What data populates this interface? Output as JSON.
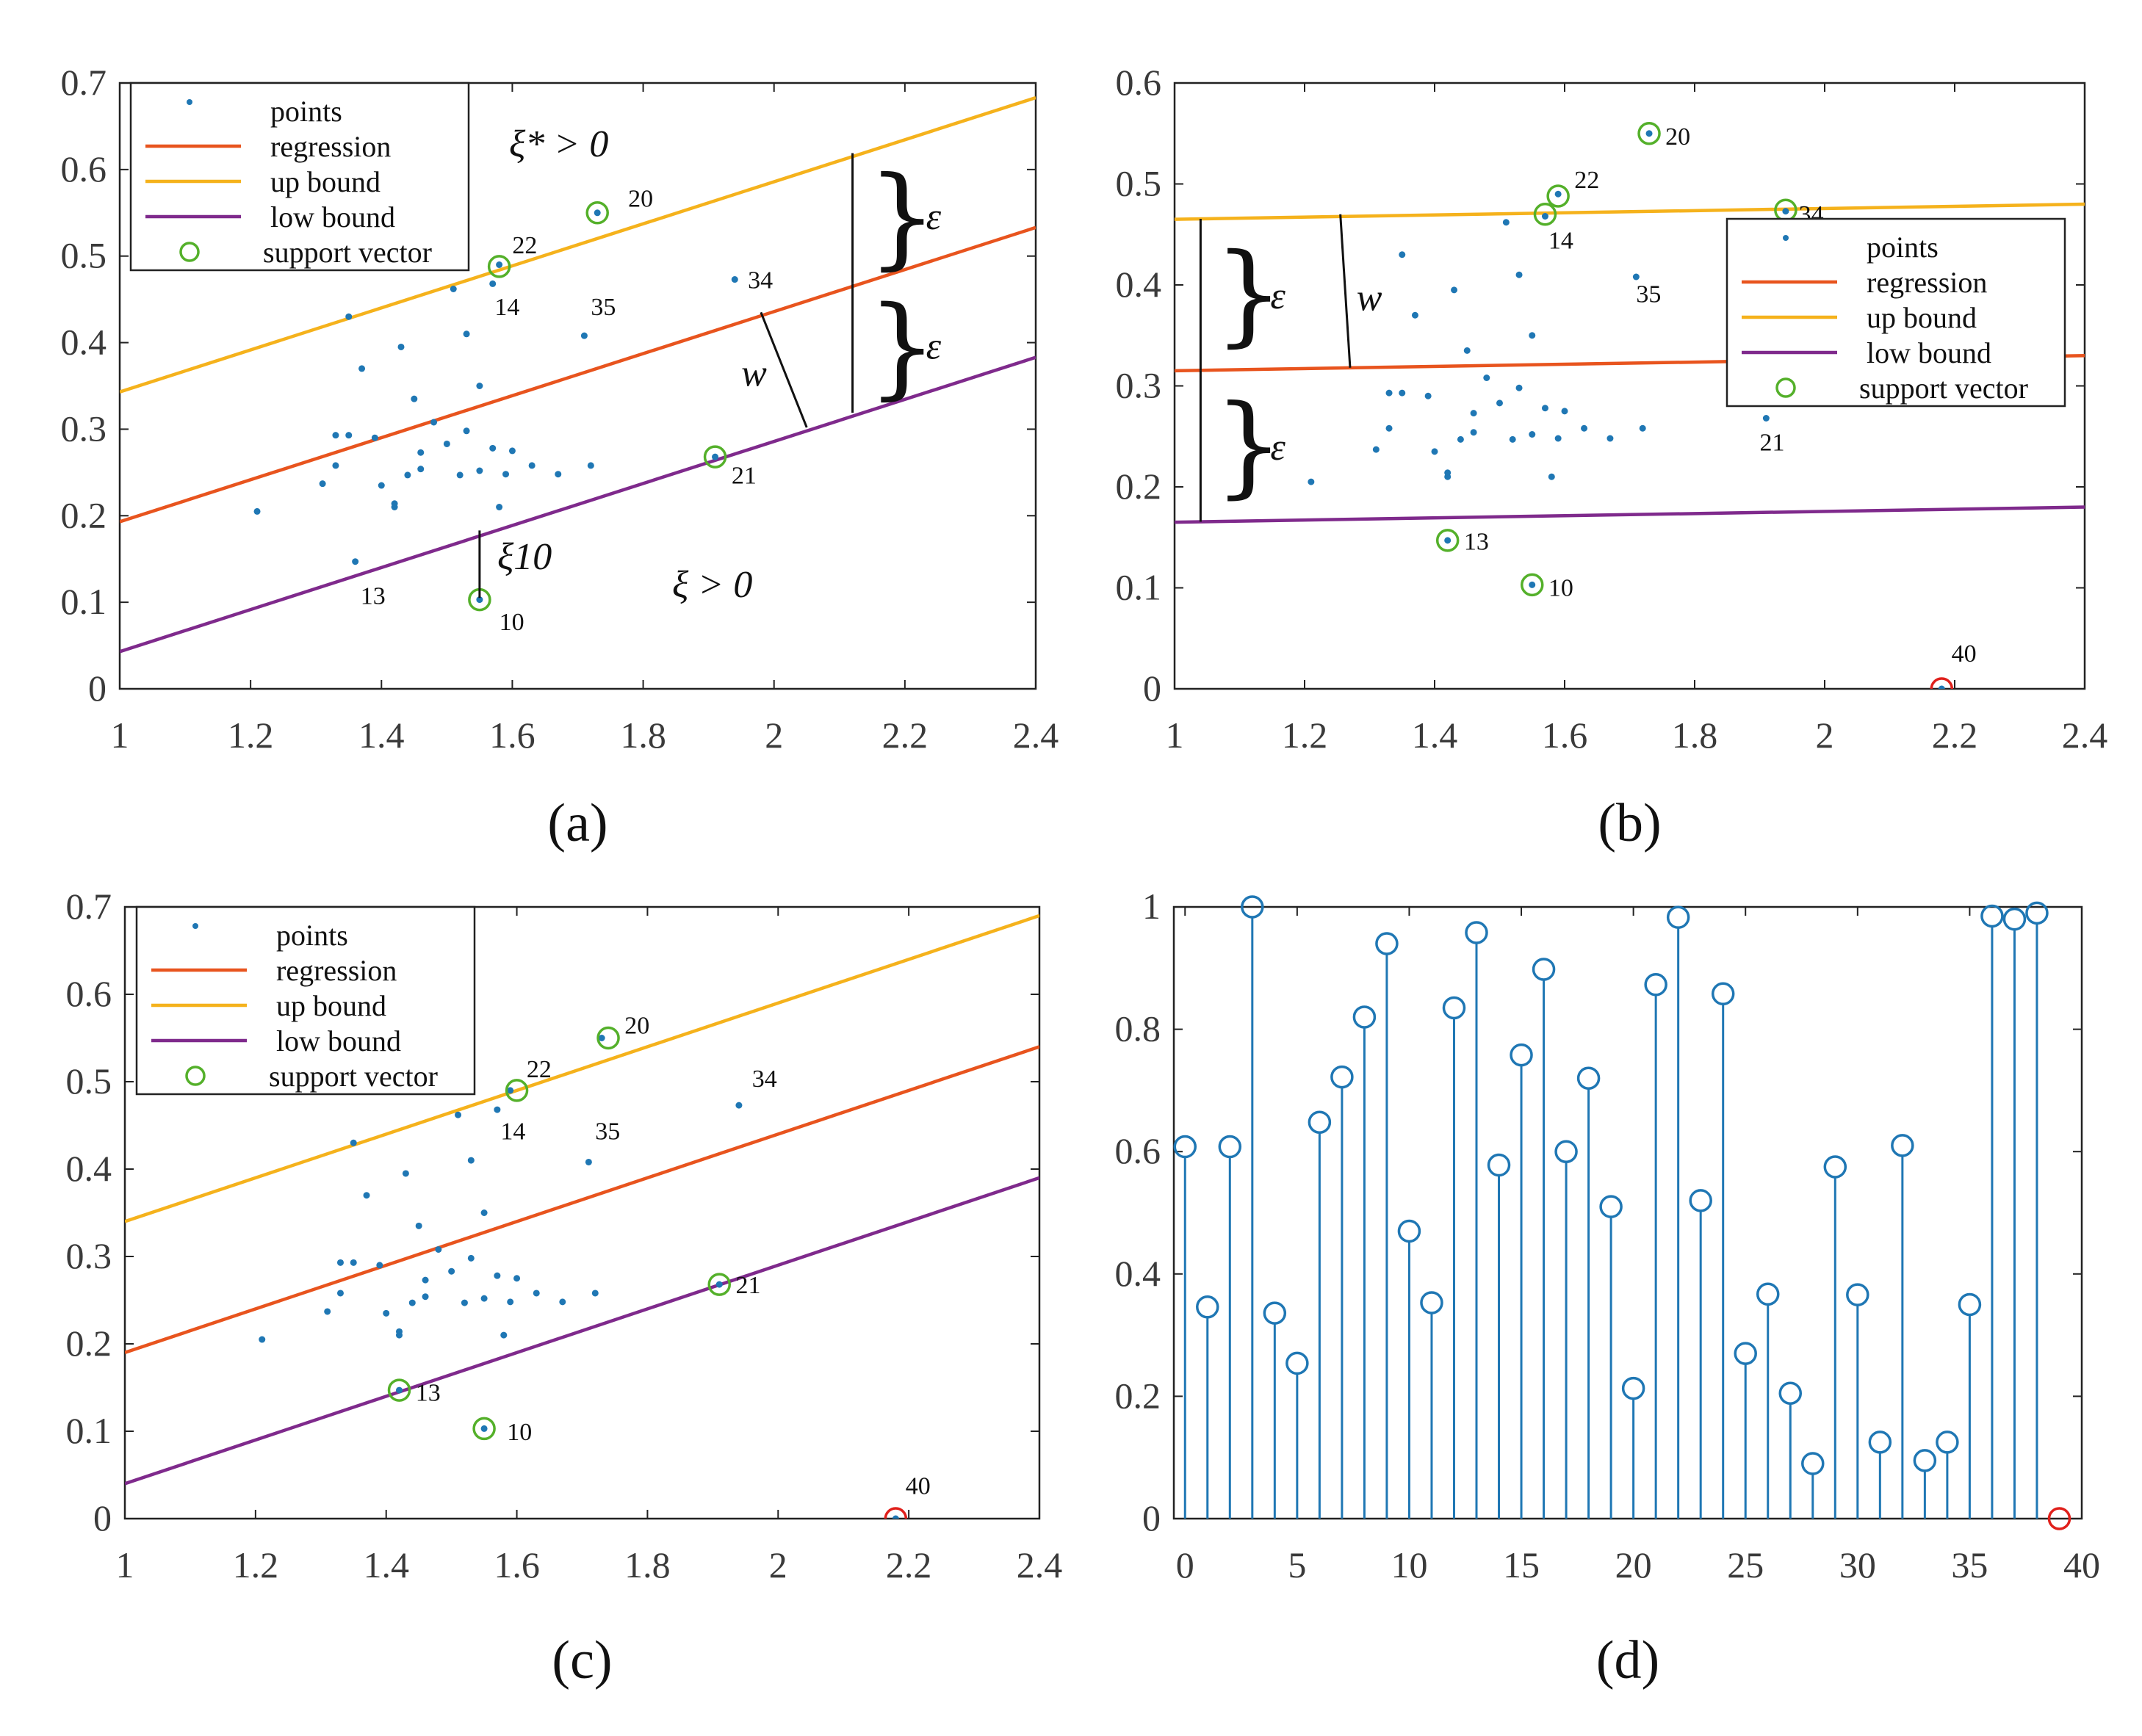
{
  "colors": {
    "points": "#1f77b4",
    "regression": "#e8541e",
    "up_bound": "#f5b21c",
    "low_bound": "#7f2a8c",
    "support_vector": "#54b02a",
    "outlier": "#e0201b",
    "stem": "#1f77b4"
  },
  "legend": {
    "points": "points",
    "regression": "regression",
    "up_bound": "up bound",
    "low_bound": "low bound",
    "support_vector": "support vector"
  },
  "chart_data": [
    {
      "id": "a",
      "type": "scatter",
      "caption": "(a)",
      "xlim": [
        1,
        2.4
      ],
      "ylim": [
        0,
        0.7
      ],
      "xticks": [
        1,
        1.2,
        1.4,
        1.6,
        1.8,
        2,
        2.2,
        2.4
      ],
      "xtick_labels": [
        "1",
        "1.2",
        "1.4",
        "1.6",
        "1.8",
        "2",
        "2.2",
        "2.4"
      ],
      "yticks": [
        0,
        0.1,
        0.2,
        0.3,
        0.4,
        0.5,
        0.6,
        0.7
      ],
      "ytick_labels": [
        "0",
        "0.1",
        "0.2",
        "0.3",
        "0.4",
        "0.5",
        "0.6",
        "0.7"
      ],
      "lines": {
        "regression": [
          [
            1,
            0.193
          ],
          [
            2.4,
            0.533
          ]
        ],
        "up_bound": [
          [
            1,
            0.343
          ],
          [
            2.4,
            0.683
          ]
        ],
        "low_bound": [
          [
            1,
            0.043
          ],
          [
            2.4,
            0.383
          ]
        ]
      },
      "points": [
        [
          1.21,
          0.205
        ],
        [
          1.31,
          0.237
        ],
        [
          1.33,
          0.293
        ],
        [
          1.33,
          0.258
        ],
        [
          1.35,
          0.293
        ],
        [
          1.35,
          0.43
        ],
        [
          1.37,
          0.37
        ],
        [
          1.39,
          0.29
        ],
        [
          1.4,
          0.235
        ],
        [
          1.42,
          0.21
        ],
        [
          1.42,
          0.214
        ],
        [
          1.43,
          0.395
        ],
        [
          1.44,
          0.247
        ],
        [
          1.45,
          0.335
        ],
        [
          1.46,
          0.254
        ],
        [
          1.46,
          0.273
        ],
        [
          1.48,
          0.308
        ],
        [
          1.5,
          0.283
        ],
        [
          1.51,
          0.462
        ],
        [
          1.52,
          0.247
        ],
        [
          1.53,
          0.298
        ],
        [
          1.53,
          0.41
        ],
        [
          1.55,
          0.35
        ],
        [
          1.55,
          0.252
        ],
        [
          1.57,
          0.278
        ],
        [
          1.57,
          0.468
        ],
        [
          1.58,
          0.21
        ],
        [
          1.59,
          0.248
        ],
        [
          1.6,
          0.275
        ],
        [
          1.63,
          0.258
        ],
        [
          1.67,
          0.248
        ],
        [
          1.71,
          0.408
        ],
        [
          1.72,
          0.258
        ],
        [
          1.94,
          0.473
        ],
        [
          1.36,
          0.147
        ],
        [
          1.55,
          0.103
        ],
        [
          1.58,
          0.49
        ],
        [
          1.73,
          0.55
        ],
        [
          1.91,
          0.268
        ]
      ],
      "support_vectors": [
        [
          1.55,
          0.103
        ],
        [
          1.58,
          0.488
        ],
        [
          1.73,
          0.55
        ],
        [
          1.91,
          0.268
        ]
      ],
      "outliers": [],
      "point_labels": [
        {
          "text": "20",
          "x": 1.777,
          "y": 0.557
        },
        {
          "text": "22",
          "x": 1.6,
          "y": 0.503
        },
        {
          "text": "14",
          "x": 1.573,
          "y": 0.432
        },
        {
          "text": "35",
          "x": 1.72,
          "y": 0.432
        },
        {
          "text": "34",
          "x": 1.96,
          "y": 0.463
        },
        {
          "text": "21",
          "x": 1.935,
          "y": 0.237
        },
        {
          "text": "13",
          "x": 1.368,
          "y": 0.098
        },
        {
          "text": "10",
          "x": 1.58,
          "y": 0.068
        }
      ],
      "legend_box": true,
      "annotations": {
        "xi_star": "ξ* > 0",
        "xi": "ξ > 0",
        "xi_10": "ξ10",
        "epsilon_upper": "ε",
        "epsilon_lower": "ε",
        "w": "w"
      }
    },
    {
      "id": "b",
      "type": "scatter",
      "caption": "(b)",
      "xlim": [
        1,
        2.4
      ],
      "ylim": [
        0,
        0.6
      ],
      "xticks": [
        1,
        1.2,
        1.4,
        1.6,
        1.8,
        2,
        2.2,
        2.4
      ],
      "xtick_labels": [
        "1",
        "1.2",
        "1.4",
        "1.6",
        "1.8",
        "2",
        "2.2",
        "2.4"
      ],
      "yticks": [
        0,
        0.1,
        0.2,
        0.3,
        0.4,
        0.5,
        0.6
      ],
      "ytick_labels": [
        "0",
        "0.1",
        "0.2",
        "0.3",
        "0.4",
        "0.5",
        "0.6"
      ],
      "lines": {
        "regression": [
          [
            1,
            0.315
          ],
          [
            2.4,
            0.33
          ]
        ],
        "up_bound": [
          [
            1,
            0.465
          ],
          [
            2.4,
            0.48
          ]
        ],
        "low_bound": [
          [
            1,
            0.165
          ],
          [
            2.4,
            0.18
          ]
        ]
      },
      "points": [
        [
          1.21,
          0.205
        ],
        [
          1.31,
          0.237
        ],
        [
          1.33,
          0.293
        ],
        [
          1.33,
          0.258
        ],
        [
          1.35,
          0.293
        ],
        [
          1.35,
          0.43
        ],
        [
          1.37,
          0.37
        ],
        [
          1.39,
          0.29
        ],
        [
          1.4,
          0.235
        ],
        [
          1.42,
          0.21
        ],
        [
          1.42,
          0.214
        ],
        [
          1.43,
          0.395
        ],
        [
          1.44,
          0.247
        ],
        [
          1.45,
          0.335
        ],
        [
          1.46,
          0.254
        ],
        [
          1.46,
          0.273
        ],
        [
          1.48,
          0.308
        ],
        [
          1.5,
          0.283
        ],
        [
          1.51,
          0.462
        ],
        [
          1.52,
          0.247
        ],
        [
          1.53,
          0.298
        ],
        [
          1.53,
          0.41
        ],
        [
          1.55,
          0.35
        ],
        [
          1.55,
          0.252
        ],
        [
          1.57,
          0.278
        ],
        [
          1.57,
          0.468
        ],
        [
          1.58,
          0.21
        ],
        [
          1.59,
          0.248
        ],
        [
          1.6,
          0.275
        ],
        [
          1.63,
          0.258
        ],
        [
          1.67,
          0.248
        ],
        [
          1.71,
          0.408
        ],
        [
          1.72,
          0.258
        ],
        [
          1.94,
          0.473
        ],
        [
          1.42,
          0.147
        ],
        [
          1.55,
          0.103
        ],
        [
          1.59,
          0.49
        ],
        [
          1.73,
          0.55
        ],
        [
          1.91,
          0.268
        ],
        [
          2.18,
          0.0
        ]
      ],
      "support_vectors": [
        [
          1.42,
          0.147
        ],
        [
          1.55,
          0.103
        ],
        [
          1.57,
          0.47
        ],
        [
          1.59,
          0.488
        ],
        [
          1.73,
          0.55
        ],
        [
          1.94,
          0.474
        ]
      ],
      "outliers": [
        [
          2.18,
          0.0
        ]
      ],
      "point_labels": [
        {
          "text": "20",
          "x": 1.755,
          "y": 0.539
        },
        {
          "text": "22",
          "x": 1.615,
          "y": 0.496
        },
        {
          "text": "14",
          "x": 1.575,
          "y": 0.436
        },
        {
          "text": "35",
          "x": 1.71,
          "y": 0.383
        },
        {
          "text": "34",
          "x": 1.96,
          "y": 0.462
        },
        {
          "text": "21",
          "x": 1.9,
          "y": 0.236
        },
        {
          "text": "13",
          "x": 1.445,
          "y": 0.138
        },
        {
          "text": "10",
          "x": 1.575,
          "y": 0.092
        },
        {
          "text": "40",
          "x": 2.195,
          "y": 0.027
        }
      ],
      "legend_box": true,
      "annotations": {
        "epsilon_upper": "ε",
        "epsilon_lower": "ε",
        "w": "w"
      }
    },
    {
      "id": "c",
      "type": "scatter",
      "caption": "(c)",
      "xlim": [
        1,
        2.4
      ],
      "ylim": [
        0,
        0.7
      ],
      "xticks": [
        1,
        1.2,
        1.4,
        1.6,
        1.8,
        2,
        2.2,
        2.4
      ],
      "xtick_labels": [
        "1",
        "1.2",
        "1.4",
        "1.6",
        "1.8",
        "2",
        "2.2",
        "2.4"
      ],
      "yticks": [
        0,
        0.1,
        0.2,
        0.3,
        0.4,
        0.5,
        0.6,
        0.7
      ],
      "ytick_labels": [
        "0",
        "0.1",
        "0.2",
        "0.3",
        "0.4",
        "0.5",
        "0.6",
        "0.7"
      ],
      "lines": {
        "regression": [
          [
            1,
            0.19
          ],
          [
            2.4,
            0.54
          ]
        ],
        "up_bound": [
          [
            1,
            0.34
          ],
          [
            2.4,
            0.69
          ]
        ],
        "low_bound": [
          [
            1,
            0.04
          ],
          [
            2.4,
            0.39
          ]
        ]
      },
      "points": [
        [
          1.21,
          0.205
        ],
        [
          1.31,
          0.237
        ],
        [
          1.33,
          0.293
        ],
        [
          1.33,
          0.258
        ],
        [
          1.35,
          0.293
        ],
        [
          1.35,
          0.43
        ],
        [
          1.37,
          0.37
        ],
        [
          1.39,
          0.29
        ],
        [
          1.4,
          0.235
        ],
        [
          1.42,
          0.21
        ],
        [
          1.42,
          0.214
        ],
        [
          1.43,
          0.395
        ],
        [
          1.44,
          0.247
        ],
        [
          1.45,
          0.335
        ],
        [
          1.46,
          0.254
        ],
        [
          1.46,
          0.273
        ],
        [
          1.48,
          0.308
        ],
        [
          1.5,
          0.283
        ],
        [
          1.51,
          0.462
        ],
        [
          1.52,
          0.247
        ],
        [
          1.53,
          0.298
        ],
        [
          1.53,
          0.41
        ],
        [
          1.55,
          0.35
        ],
        [
          1.55,
          0.252
        ],
        [
          1.57,
          0.278
        ],
        [
          1.57,
          0.468
        ],
        [
          1.58,
          0.21
        ],
        [
          1.59,
          0.248
        ],
        [
          1.6,
          0.275
        ],
        [
          1.63,
          0.258
        ],
        [
          1.67,
          0.248
        ],
        [
          1.71,
          0.408
        ],
        [
          1.72,
          0.258
        ],
        [
          1.94,
          0.473
        ],
        [
          1.42,
          0.147
        ],
        [
          1.55,
          0.103
        ],
        [
          1.59,
          0.49
        ],
        [
          1.73,
          0.55
        ],
        [
          1.91,
          0.268
        ],
        [
          2.18,
          0.0
        ]
      ],
      "support_vectors": [
        [
          1.42,
          0.147
        ],
        [
          1.55,
          0.103
        ],
        [
          1.6,
          0.49
        ],
        [
          1.74,
          0.55
        ],
        [
          1.91,
          0.268
        ]
      ],
      "outliers": [
        [
          2.18,
          0.0
        ]
      ],
      "point_labels": [
        {
          "text": "20",
          "x": 1.765,
          "y": 0.555
        },
        {
          "text": "22",
          "x": 1.615,
          "y": 0.505
        },
        {
          "text": "14",
          "x": 1.575,
          "y": 0.434
        },
        {
          "text": "35",
          "x": 1.72,
          "y": 0.434
        },
        {
          "text": "34",
          "x": 1.96,
          "y": 0.494
        },
        {
          "text": "21",
          "x": 1.935,
          "y": 0.258
        },
        {
          "text": "13",
          "x": 1.445,
          "y": 0.135
        },
        {
          "text": "10",
          "x": 1.585,
          "y": 0.09
        },
        {
          "text": "40",
          "x": 2.195,
          "y": 0.028
        }
      ],
      "legend_box": true,
      "annotations": {}
    },
    {
      "id": "d",
      "type": "stem",
      "caption": "(d)",
      "xlim": [
        -0.5,
        40
      ],
      "ylim": [
        0,
        1
      ],
      "xticks": [
        0,
        5,
        10,
        15,
        20,
        25,
        30,
        35,
        40
      ],
      "xtick_labels": [
        "0",
        "5",
        "10",
        "15",
        "20",
        "25",
        "30",
        "35",
        "40"
      ],
      "yticks": [
        0,
        0.2,
        0.4,
        0.6,
        0.8,
        1
      ],
      "ytick_labels": [
        "0",
        "0.2",
        "0.4",
        "0.6",
        "0.8",
        "1"
      ],
      "x": [
        0,
        1,
        2,
        3,
        4,
        5,
        6,
        7,
        8,
        9,
        10,
        11,
        12,
        13,
        14,
        15,
        16,
        17,
        18,
        19,
        20,
        21,
        22,
        23,
        24,
        25,
        26,
        27,
        28,
        29,
        30,
        31,
        32,
        33,
        34,
        35,
        36,
        37,
        38,
        39
      ],
      "values": [
        0.608,
        0.346,
        0.608,
        1.0,
        0.336,
        0.254,
        0.648,
        0.722,
        0.82,
        0.94,
        0.47,
        0.353,
        0.835,
        0.958,
        0.578,
        0.758,
        0.898,
        0.6,
        0.72,
        0.51,
        0.213,
        0.873,
        0.983,
        0.52,
        0.858,
        0.27,
        0.367,
        0.205,
        0.09,
        0.575,
        0.366,
        0.125,
        0.61,
        0.095,
        0.125,
        0.35,
        0.985,
        0.98,
        0.99,
        0.0
      ],
      "outliers": [
        39
      ]
    }
  ]
}
